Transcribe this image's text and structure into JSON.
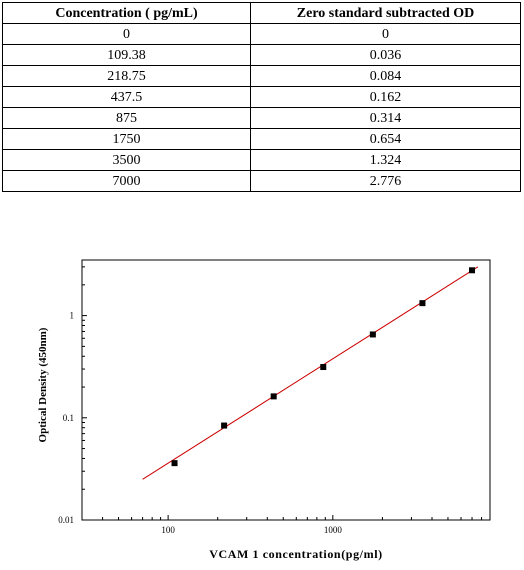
{
  "table": {
    "headers": [
      "Concentration ( pg/mL)",
      "Zero standard subtracted OD"
    ],
    "rows": [
      [
        "0",
        "0"
      ],
      [
        "109.38",
        "0.036"
      ],
      [
        "218.75",
        "0.084"
      ],
      [
        "437.5",
        "0.162"
      ],
      [
        "875",
        "0.314"
      ],
      [
        "1750",
        "0.654"
      ],
      [
        "3500",
        "1.324"
      ],
      [
        "7000",
        "2.776"
      ]
    ]
  },
  "chart_data": {
    "type": "scatter",
    "xlabel": "VCAM 1 concentration(pg/ml)",
    "ylabel": "Optical Density (450nm)",
    "x_scale": "log",
    "y_scale": "log",
    "xlim": [
      30,
      9000
    ],
    "ylim": [
      0.01,
      3.5
    ],
    "x_ticks": [
      100,
      1000
    ],
    "x_tick_labels": [
      "100",
      "1000"
    ],
    "y_ticks": [
      0.01,
      0.1,
      1
    ],
    "y_tick_labels": [
      "0.01",
      "0.1",
      "1"
    ],
    "grid": false,
    "points": {
      "x": [
        109.38,
        218.75,
        437.5,
        875,
        1750,
        3500,
        7000
      ],
      "y": [
        0.036,
        0.084,
        0.162,
        0.314,
        0.654,
        1.324,
        2.776
      ],
      "color": "#000000"
    },
    "fit_line": {
      "x": [
        70,
        7600
      ],
      "y": [
        0.025,
        3.0
      ],
      "color": "#cc0000"
    }
  }
}
